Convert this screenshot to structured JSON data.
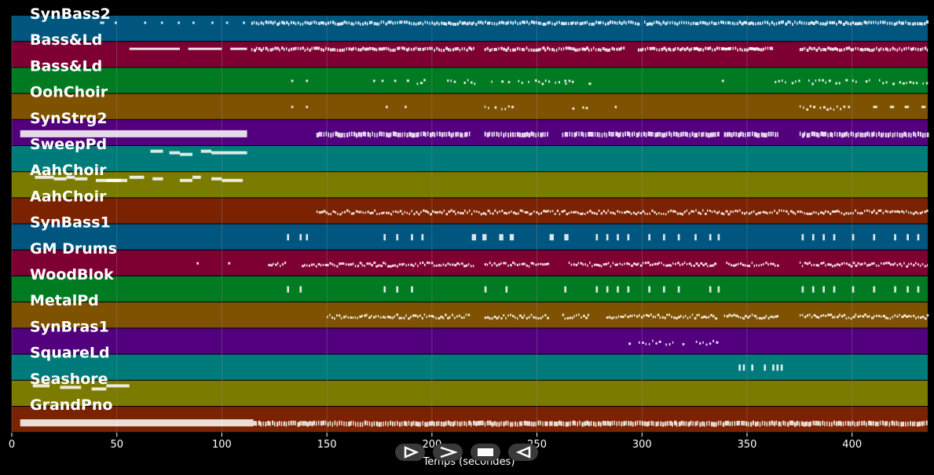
{
  "axis": {
    "xlabel": "Temps (secondes)",
    "xmin": 0,
    "xmax": 436,
    "ticks": [
      0,
      50,
      100,
      150,
      200,
      250,
      300,
      350,
      400
    ]
  },
  "colors": {
    "background": "#000000",
    "grid": "#8c8c8c",
    "note": "#ffffff"
  },
  "tracks": [
    {
      "label": "SynBass2",
      "color": "#00567f",
      "notes": [
        [
          42,
          44
        ],
        [
          44,
          45
        ],
        [
          49,
          50
        ],
        [
          63,
          64
        ],
        [
          65,
          66
        ],
        [
          71,
          72
        ],
        [
          79,
          80
        ],
        [
          82,
          83
        ],
        [
          86,
          87
        ],
        [
          95,
          96
        ],
        [
          102,
          103
        ],
        [
          110,
          111
        ],
        [
          117,
          118
        ],
        [
          126,
          127
        ],
        [
          118,
          310
        ],
        [
          112,
          436
        ],
        [
          120,
          220
        ],
        [
          130,
          140
        ],
        [
          150,
          160
        ],
        [
          175,
          185
        ],
        [
          200,
          205
        ],
        [
          212,
          215
        ],
        [
          220,
          230
        ],
        [
          250,
          260
        ],
        [
          270,
          280
        ],
        [
          300,
          310
        ],
        [
          320,
          330
        ],
        [
          340,
          350
        ],
        [
          360,
          370
        ],
        [
          380,
          390
        ],
        [
          400,
          410
        ],
        [
          420,
          430
        ]
      ],
      "style": "dense-top",
      "ranges": [
        [
          114,
          298
        ],
        [
          301,
          436
        ]
      ],
      "sparse": [
        [
          42,
          44
        ],
        [
          49,
          50
        ],
        [
          63,
          64
        ],
        [
          71,
          72
        ],
        [
          79,
          80
        ],
        [
          86,
          87
        ],
        [
          95,
          96
        ],
        [
          102,
          103
        ],
        [
          110,
          111
        ]
      ]
    },
    {
      "label": "Bass&Ld",
      "color": "#7e0033",
      "style": "dense-top",
      "ranges": [
        [
          114,
          220
        ],
        [
          225,
          292
        ],
        [
          298,
          362
        ],
        [
          375,
          436
        ]
      ],
      "sparse": [
        [
          56,
          80
        ],
        [
          84,
          100
        ],
        [
          104,
          112
        ],
        [
          325,
          327
        ],
        [
          338,
          342
        ],
        [
          352,
          354
        ]
      ]
    },
    {
      "label": "Bass&Ld",
      "color": "#007b22",
      "style": "scatter",
      "ranges": [
        [
          188,
          220
        ],
        [
          225,
          275
        ],
        [
          360,
          436
        ]
      ],
      "sparse": [
        [
          133,
          134
        ],
        [
          140,
          141
        ],
        [
          172,
          173
        ],
        [
          176,
          177
        ],
        [
          182,
          183
        ],
        [
          263,
          264
        ],
        [
          338,
          339
        ]
      ]
    },
    {
      "label": "OohChoir",
      "color": "#7e5200",
      "style": "scatter",
      "ranges": [
        [
          225,
          240
        ],
        [
          262,
          276
        ],
        [
          375,
          396
        ]
      ],
      "sparse": [
        [
          133,
          134
        ],
        [
          140,
          141
        ],
        [
          178,
          179
        ],
        [
          187,
          188
        ],
        [
          287,
          288
        ],
        [
          398,
          399
        ],
        [
          410,
          412
        ],
        [
          418,
          420
        ],
        [
          425,
          427
        ],
        [
          433,
          435
        ]
      ]
    },
    {
      "label": "SynStrg2",
      "color": "#52007e",
      "style": "big",
      "big": [
        [
          4,
          112
        ]
      ],
      "ranges": [
        [
          145,
          218
        ],
        [
          225,
          255
        ],
        [
          262,
          336
        ],
        [
          339,
          365
        ],
        [
          375,
          436
        ]
      ]
    },
    {
      "label": "SweepPd",
      "color": "#007b7b",
      "style": "dashes",
      "dashes": [
        [
          66,
          72
        ],
        [
          75,
          80
        ],
        [
          80,
          86
        ],
        [
          90,
          95
        ],
        [
          95,
          112
        ]
      ]
    },
    {
      "label": "AahChoir",
      "color": "#7b7b00",
      "style": "dashes",
      "dashes": [
        [
          11,
          20
        ],
        [
          20,
          26
        ],
        [
          40,
          55
        ],
        [
          26,
          30
        ],
        [
          30,
          36
        ],
        [
          45,
          52
        ],
        [
          56,
          63
        ],
        [
          67,
          72
        ],
        [
          80,
          86
        ],
        [
          86,
          90
        ],
        [
          95,
          100
        ],
        [
          100,
          110
        ]
      ]
    },
    {
      "label": "AahChoir",
      "color": "#7b2200",
      "style": "dense",
      "ranges": [
        [
          145,
          436
        ]
      ]
    },
    {
      "label": "SynBass1",
      "color": "#00567f",
      "style": "sticks",
      "sparse": [
        [
          131,
          132
        ],
        [
          137,
          138
        ],
        [
          140,
          141
        ],
        [
          177,
          178
        ],
        [
          183,
          184
        ],
        [
          190,
          191
        ],
        [
          195,
          196
        ],
        [
          219,
          221
        ],
        [
          224,
          226
        ],
        [
          232,
          234
        ],
        [
          237,
          239
        ],
        [
          256,
          258
        ],
        [
          263,
          265
        ],
        [
          278,
          279
        ],
        [
          283,
          284
        ],
        [
          288,
          289
        ],
        [
          293,
          294
        ],
        [
          303,
          304
        ],
        [
          310,
          311
        ],
        [
          317,
          318
        ],
        [
          325,
          326
        ],
        [
          332,
          333
        ],
        [
          336,
          337
        ],
        [
          376,
          377
        ],
        [
          381,
          382
        ],
        [
          386,
          387
        ],
        [
          391,
          392
        ],
        [
          400,
          401
        ],
        [
          410,
          411
        ],
        [
          420,
          421
        ],
        [
          426,
          427
        ],
        [
          431,
          432
        ]
      ]
    },
    {
      "label": "GM Drums",
      "color": "#7e0033",
      "style": "dense",
      "ranges": [
        [
          122,
          130
        ],
        [
          138,
          220
        ],
        [
          225,
          255
        ],
        [
          265,
          335
        ],
        [
          340,
          365
        ],
        [
          375,
          436
        ]
      ],
      "sparse": [
        [
          88,
          89
        ],
        [
          103,
          104
        ]
      ]
    },
    {
      "label": "WoodBlok",
      "color": "#007b22",
      "style": "sticks",
      "sparse": [
        [
          131,
          132
        ],
        [
          137,
          138
        ],
        [
          177,
          178
        ],
        [
          183,
          184
        ],
        [
          190,
          191
        ],
        [
          225,
          226
        ],
        [
          235,
          236
        ],
        [
          263,
          264
        ],
        [
          278,
          279
        ],
        [
          283,
          284
        ],
        [
          288,
          289
        ],
        [
          293,
          294
        ],
        [
          303,
          304
        ],
        [
          310,
          311
        ],
        [
          317,
          318
        ],
        [
          332,
          333
        ],
        [
          336,
          337
        ],
        [
          376,
          377
        ],
        [
          381,
          382
        ],
        [
          386,
          387
        ],
        [
          391,
          392
        ],
        [
          400,
          401
        ],
        [
          410,
          411
        ],
        [
          420,
          421
        ],
        [
          426,
          427
        ],
        [
          431,
          432
        ]
      ]
    },
    {
      "label": "MetalPd",
      "color": "#7e5200",
      "style": "dense",
      "ranges": [
        [
          150,
          218
        ],
        [
          225,
          255
        ],
        [
          262,
          275
        ],
        [
          283,
          335
        ],
        [
          339,
          365
        ],
        [
          375,
          436
        ]
      ]
    },
    {
      "label": "SynBras1",
      "color": "#52007e",
      "style": "scatter",
      "ranges": [
        [
          292,
          336
        ]
      ]
    },
    {
      "label": "SquareLd",
      "color": "#007b7b",
      "style": "sticks",
      "sparse": [
        [
          346,
          347
        ],
        [
          348,
          349
        ],
        [
          352,
          353
        ],
        [
          358,
          359
        ],
        [
          362,
          363
        ],
        [
          364,
          365
        ],
        [
          366,
          367
        ]
      ]
    },
    {
      "label": "Seashore",
      "color": "#7b7b00",
      "style": "dashes",
      "dashes": [
        [
          10,
          18
        ],
        [
          23,
          33
        ],
        [
          38,
          45
        ],
        [
          45,
          56
        ]
      ]
    },
    {
      "label": "GrandPno",
      "color": "#7b2200",
      "style": "big",
      "big": [
        [
          4,
          115
        ]
      ],
      "ranges": [
        [
          115,
          436
        ]
      ]
    }
  ],
  "controls": [
    {
      "name": "play-button",
      "icon": "play-icon"
    },
    {
      "name": "forward-button",
      "icon": "chevron-right-icon"
    },
    {
      "name": "stop-button",
      "icon": "stop-icon"
    },
    {
      "name": "rewind-button",
      "icon": "rewind-icon"
    }
  ]
}
